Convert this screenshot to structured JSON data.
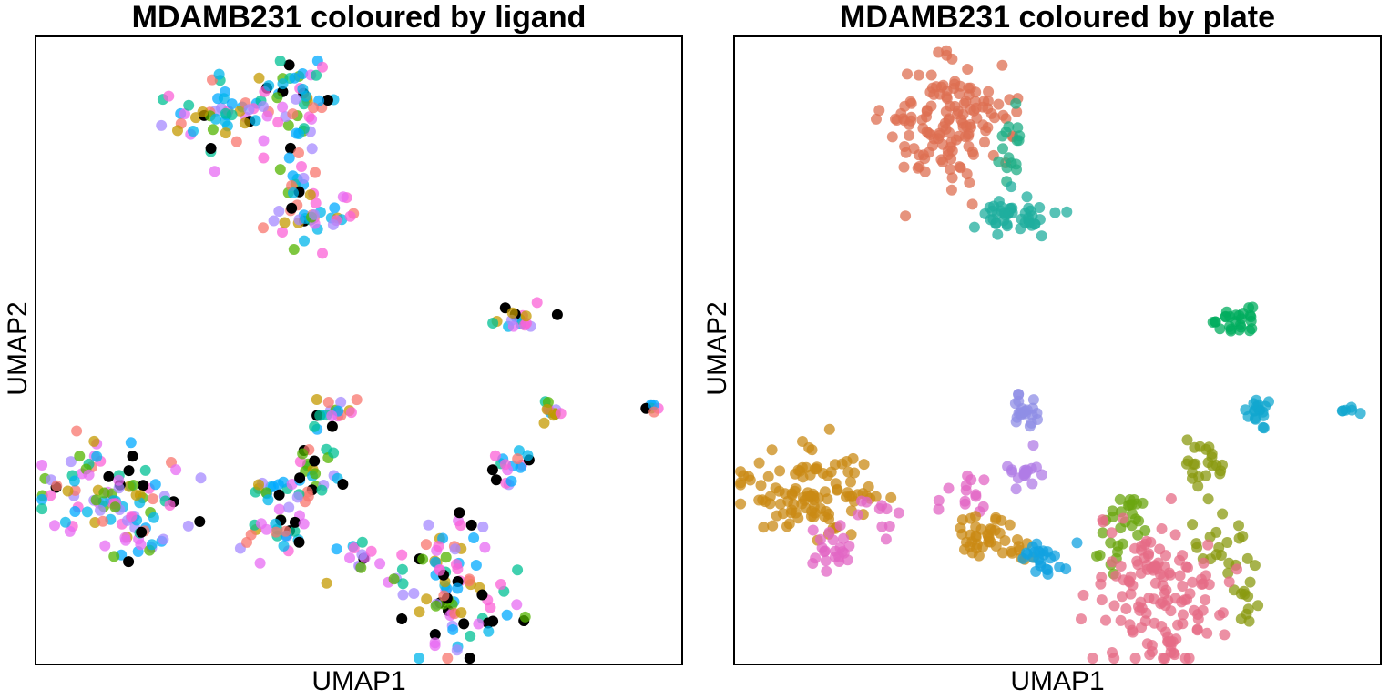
{
  "chart_data": [
    {
      "type": "scatter",
      "title": "MDAMB231 coloured by ligand",
      "xlabel": "UMAP1",
      "ylabel": "UMAP2",
      "xlim": [
        0,
        100
      ],
      "ylim": [
        0,
        100
      ],
      "grid": false,
      "legend": "none",
      "colors": [
        "#f8766d",
        "#c49a00",
        "#53b400",
        "#00c094",
        "#00b6eb",
        "#a58aff",
        "#fb61d7",
        "#e76bf3",
        "#00a9ff",
        "#000000"
      ],
      "clusters": [
        {
          "cx": 29,
          "cy": 87,
          "sx": 4.0,
          "sy": 3.2,
          "n": 50
        },
        {
          "cx": 40,
          "cy": 90,
          "sx": 3.0,
          "sy": 4.0,
          "n": 45
        },
        {
          "cx": 41,
          "cy": 79,
          "sx": 1.8,
          "sy": 4.5,
          "n": 18
        },
        {
          "cx": 43,
          "cy": 71.5,
          "sx": 3.0,
          "sy": 1.8,
          "n": 38
        },
        {
          "cx": 11,
          "cy": 27,
          "sx": 5.5,
          "sy": 3.2,
          "n": 95
        },
        {
          "cx": 16,
          "cy": 18,
          "sx": 2.0,
          "sy": 1.8,
          "n": 18
        },
        {
          "cx": 37,
          "cy": 21,
          "sx": 2.5,
          "sy": 2.0,
          "n": 25
        },
        {
          "cx": 36,
          "cy": 27,
          "sx": 2.5,
          "sy": 1.5,
          "n": 14
        },
        {
          "cx": 43,
          "cy": 31,
          "sx": 2.5,
          "sy": 3.5,
          "n": 32
        },
        {
          "cx": 46,
          "cy": 40,
          "sx": 1.5,
          "sy": 1.5,
          "n": 18
        },
        {
          "cx": 49,
          "cy": 17,
          "sx": 2.0,
          "sy": 1.5,
          "n": 14
        },
        {
          "cx": 64,
          "cy": 13,
          "sx": 4.5,
          "sy": 5.5,
          "n": 95
        },
        {
          "cx": 73,
          "cy": 32,
          "sx": 1.8,
          "sy": 1.5,
          "n": 16
        },
        {
          "cx": 75,
          "cy": 55,
          "sx": 2.0,
          "sy": 1.0,
          "n": 18
        },
        {
          "cx": 80,
          "cy": 40.5,
          "sx": 1.0,
          "sy": 1.0,
          "n": 12
        },
        {
          "cx": 95,
          "cy": 40.5,
          "sx": 0.6,
          "sy": 0.5,
          "n": 6
        }
      ]
    },
    {
      "type": "scatter",
      "title": "MDAMB231 coloured by plate",
      "xlabel": "UMAP1",
      "ylabel": "UMAP2",
      "xlim": [
        0,
        100
      ],
      "ylim": [
        0,
        100
      ],
      "grid": false,
      "legend": "none",
      "clusters": [
        {
          "cx": 33,
          "cy": 86,
          "sx": 4.5,
          "sy": 4.5,
          "n": 140,
          "color": "#de6f52"
        },
        {
          "cx": 43,
          "cy": 80,
          "sx": 1.3,
          "sy": 2.8,
          "n": 16,
          "color": "#1fad86"
        },
        {
          "cx": 43,
          "cy": 71.5,
          "sx": 3.0,
          "sy": 1.7,
          "n": 45,
          "color": "#1fad9e"
        },
        {
          "cx": 77,
          "cy": 54.5,
          "sx": 2.0,
          "sy": 0.9,
          "n": 26,
          "color": "#00ac5e"
        },
        {
          "cx": 45,
          "cy": 40.5,
          "sx": 1.5,
          "sy": 1.2,
          "n": 22,
          "color": "#8f8de6"
        },
        {
          "cx": 81,
          "cy": 40.5,
          "sx": 1.2,
          "sy": 1.0,
          "n": 18,
          "color": "#12a7cf"
        },
        {
          "cx": 95,
          "cy": 40.5,
          "sx": 0.6,
          "sy": 0.5,
          "n": 6,
          "color": "#12a7cf"
        },
        {
          "cx": 12,
          "cy": 27,
          "sx": 6.0,
          "sy": 3.5,
          "n": 110,
          "color": "#c98a14"
        },
        {
          "cx": 15,
          "cy": 19,
          "sx": 2.0,
          "sy": 2.0,
          "n": 22,
          "color": "#e165c4"
        },
        {
          "cx": 22,
          "cy": 24,
          "sx": 2.0,
          "sy": 2.0,
          "n": 10,
          "color": "#e165c4"
        },
        {
          "cx": 36,
          "cy": 27,
          "sx": 2.8,
          "sy": 1.4,
          "n": 14,
          "color": "#e165c4"
        },
        {
          "cx": 45,
          "cy": 31,
          "sx": 2.0,
          "sy": 1.4,
          "n": 18,
          "color": "#b07ce6"
        },
        {
          "cx": 39,
          "cy": 21,
          "sx": 2.0,
          "sy": 1.8,
          "n": 36,
          "color": "#c98a14"
        },
        {
          "cx": 44,
          "cy": 18,
          "sx": 1.5,
          "sy": 1.3,
          "n": 8,
          "color": "#c98a14"
        },
        {
          "cx": 48,
          "cy": 17,
          "sx": 1.5,
          "sy": 1.5,
          "n": 24,
          "color": "#12a1e0"
        },
        {
          "cx": 62,
          "cy": 24,
          "sx": 1.5,
          "sy": 1.5,
          "n": 16,
          "color": "#6ba510"
        },
        {
          "cx": 58,
          "cy": 20,
          "sx": 1.0,
          "sy": 3.0,
          "n": 14,
          "color": "#6ba510"
        },
        {
          "cx": 73,
          "cy": 31.5,
          "sx": 1.8,
          "sy": 1.8,
          "n": 22,
          "color": "#8a9a10"
        },
        {
          "cx": 74,
          "cy": 20,
          "sx": 2.5,
          "sy": 3.5,
          "n": 20,
          "color": "#8a9a10"
        },
        {
          "cx": 79,
          "cy": 10,
          "sx": 1.2,
          "sy": 2.0,
          "n": 12,
          "color": "#8a9a10"
        },
        {
          "cx": 66,
          "cy": 12,
          "sx": 5.0,
          "sy": 6.0,
          "n": 135,
          "color": "#e56b86"
        }
      ]
    }
  ]
}
